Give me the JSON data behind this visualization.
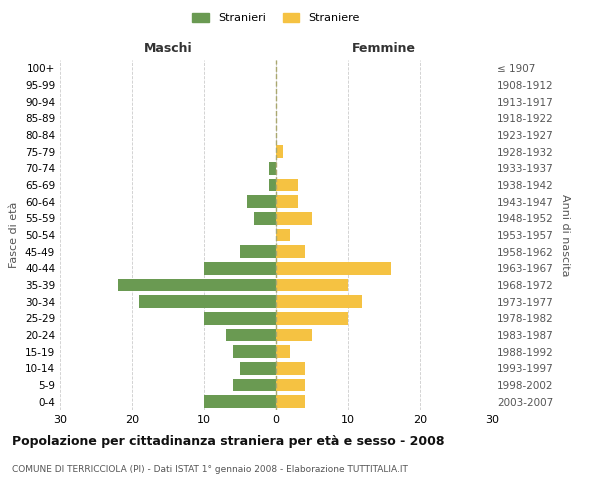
{
  "age_groups": [
    "0-4",
    "5-9",
    "10-14",
    "15-19",
    "20-24",
    "25-29",
    "30-34",
    "35-39",
    "40-44",
    "45-49",
    "50-54",
    "55-59",
    "60-64",
    "65-69",
    "70-74",
    "75-79",
    "80-84",
    "85-89",
    "90-94",
    "95-99",
    "100+"
  ],
  "birth_years": [
    "2003-2007",
    "1998-2002",
    "1993-1997",
    "1988-1992",
    "1983-1987",
    "1978-1982",
    "1973-1977",
    "1968-1972",
    "1963-1967",
    "1958-1962",
    "1953-1957",
    "1948-1952",
    "1943-1947",
    "1938-1942",
    "1933-1937",
    "1928-1932",
    "1923-1927",
    "1918-1922",
    "1913-1917",
    "1908-1912",
    "≤ 1907"
  ],
  "males": [
    10,
    6,
    5,
    6,
    7,
    10,
    19,
    22,
    10,
    5,
    0,
    3,
    4,
    1,
    1,
    0,
    0,
    0,
    0,
    0,
    0
  ],
  "females": [
    4,
    4,
    4,
    2,
    5,
    10,
    12,
    10,
    16,
    4,
    2,
    5,
    3,
    3,
    0,
    1,
    0,
    0,
    0,
    0,
    0
  ],
  "male_color": "#6a9a52",
  "female_color": "#f5c242",
  "title": "Popolazione per cittadinanza straniera per età e sesso - 2008",
  "subtitle": "COMUNE DI TERRICCIOLA (PI) - Dati ISTAT 1° gennaio 2008 - Elaborazione TUTTITALIA.IT",
  "xlabel_left": "Maschi",
  "xlabel_right": "Femmine",
  "ylabel_left": "Fasce di età",
  "ylabel_right": "Anni di nascita",
  "legend_male": "Stranieri",
  "legend_female": "Straniere",
  "xlim": 30,
  "background_color": "#ffffff",
  "grid_color": "#cccccc"
}
